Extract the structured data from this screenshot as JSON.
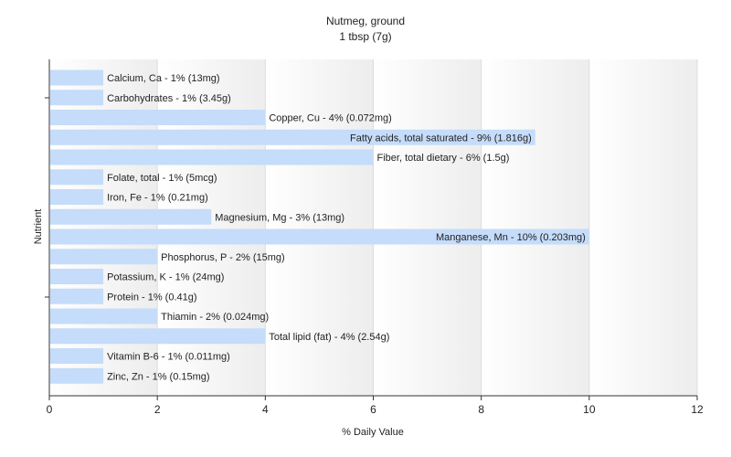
{
  "chart_data": {
    "type": "bar",
    "orientation": "horizontal",
    "title": "Nutmeg, ground",
    "subtitle": "1 tbsp (7g)",
    "xlabel": "% Daily Value",
    "ylabel": "Nutrient",
    "xlim": [
      0,
      12
    ],
    "xticks": [
      "0",
      "2",
      "4",
      "6",
      "8",
      "10",
      "12"
    ],
    "grid": true,
    "bar_color": "#c5dcfa",
    "categories": [
      "Calcium, Ca",
      "Carbohydrates",
      "Copper, Cu",
      "Fatty acids, total saturated",
      "Fiber, total dietary",
      "Folate, total",
      "Iron, Fe",
      "Magnesium, Mg",
      "Manganese, Mn",
      "Phosphorus, P",
      "Potassium, K",
      "Protein",
      "Thiamin",
      "Total lipid (fat)",
      "Vitamin B-6",
      "Zinc, Zn"
    ],
    "values": [
      1,
      1,
      4,
      9,
      6,
      1,
      1,
      3,
      10,
      2,
      1,
      1,
      2,
      4,
      1,
      1
    ],
    "labels": [
      "Calcium, Ca - 1% (13mg)",
      "Carbohydrates - 1% (3.45g)",
      "Copper, Cu - 4% (0.072mg)",
      "Fatty acids, total saturated - 9% (1.816g)",
      "Fiber, total dietary - 6% (1.5g)",
      "Folate, total - 1% (5mcg)",
      "Iron, Fe - 1% (0.21mg)",
      "Magnesium, Mg - 3% (13mg)",
      "Manganese, Mn - 10% (0.203mg)",
      "Phosphorus, P - 2% (15mg)",
      "Potassium, K - 1% (24mg)",
      "Protein - 1% (0.41g)",
      "Thiamin - 2% (0.024mg)",
      "Total lipid (fat) - 4% (2.54g)",
      "Vitamin B-6 - 1% (0.011mg)",
      "Zinc, Zn - 1% (0.15mg)"
    ]
  }
}
